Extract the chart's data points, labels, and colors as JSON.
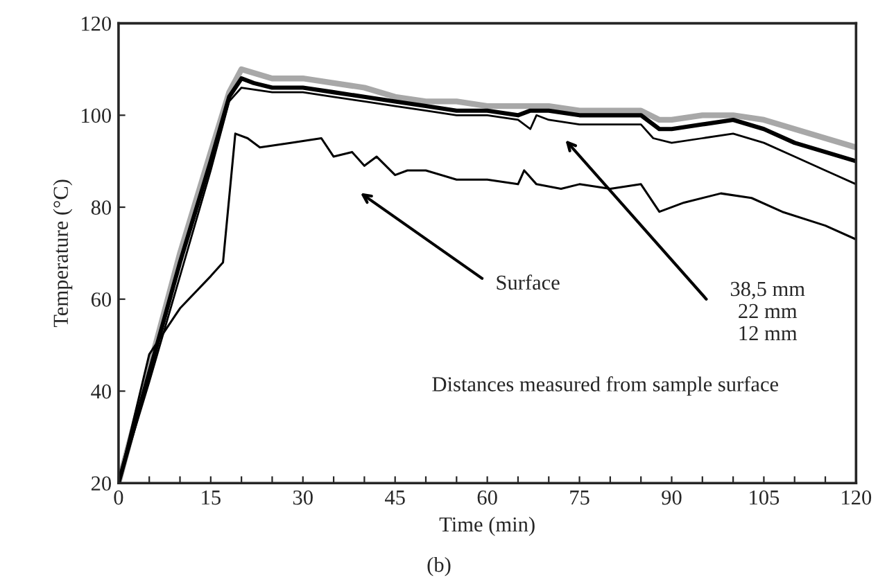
{
  "chart_data": {
    "type": "line",
    "xlabel": "Time (min)",
    "ylabel": "Temperature (°C)",
    "xlim": [
      0,
      120
    ],
    "ylim": [
      20,
      120
    ],
    "xticks": [
      0,
      {
        "value": 5,
        "label": null
      },
      {
        "value": 10,
        "label": null
      },
      15,
      {
        "value": 20,
        "label": null
      },
      {
        "value": 25,
        "label": null
      },
      30,
      {
        "value": 35,
        "label": null
      },
      {
        "value": 40,
        "label": null
      },
      45,
      {
        "value": 50,
        "label": null
      },
      {
        "value": 55,
        "label": null
      },
      60,
      {
        "value": 65,
        "label": null
      },
      {
        "value": 70,
        "label": null
      },
      75,
      {
        "value": 80,
        "label": null
      },
      {
        "value": 85,
        "label": null
      },
      90,
      {
        "value": 95,
        "label": null
      },
      {
        "value": 100,
        "label": null
      },
      105,
      {
        "value": 110,
        "label": null
      },
      {
        "value": 115,
        "label": null
      },
      120
    ],
    "yticks": [
      20,
      40,
      60,
      80,
      100,
      120
    ],
    "grid": false,
    "legend": false,
    "marker": "none",
    "line_style": "solid",
    "x": [
      0,
      5,
      10,
      15,
      17,
      19,
      21,
      23,
      28,
      33,
      35,
      38,
      40,
      42,
      45,
      47,
      50,
      55,
      60,
      65,
      66,
      68,
      72,
      75,
      80,
      85,
      88,
      92,
      98,
      103,
      108,
      115,
      120
    ],
    "series": [
      {
        "color": "#a8a8a8",
        "x": [
          0,
          5,
          10,
          15,
          18,
          20,
          25,
          30,
          35,
          40,
          45,
          50,
          55,
          60,
          65,
          70,
          75,
          80,
          85,
          88,
          90,
          95,
          100,
          105,
          110,
          115,
          120
        ],
        "values": [
          20,
          45,
          70,
          92,
          105,
          110,
          108,
          108,
          107,
          106,
          104,
          103,
          103,
          102,
          102,
          102,
          101,
          101,
          101,
          99,
          99,
          100,
          100,
          99,
          97,
          95,
          93
        ]
      },
      {
        "color": "#000000",
        "x": [
          0,
          5,
          10,
          15,
          18,
          20,
          22,
          25,
          30,
          35,
          40,
          45,
          50,
          55,
          60,
          65,
          67,
          70,
          75,
          80,
          85,
          88,
          90,
          95,
          100,
          105,
          110,
          115,
          120
        ],
        "values": [
          20,
          44,
          68,
          90,
          104,
          108,
          107,
          106,
          106,
          105,
          104,
          103,
          102,
          101,
          101,
          100,
          101,
          101,
          100,
          100,
          100,
          97,
          97,
          98,
          99,
          97,
          94,
          92,
          90
        ]
      },
      {
        "color": "#000000",
        "x": [
          0,
          5,
          10,
          15,
          18,
          20,
          25,
          30,
          35,
          40,
          45,
          50,
          55,
          60,
          65,
          67,
          68,
          70,
          75,
          80,
          85,
          87,
          90,
          95,
          100,
          105,
          110,
          115,
          120
        ],
        "values": [
          20,
          42,
          65,
          88,
          103,
          106,
          105,
          105,
          104,
          103,
          102,
          101,
          100,
          100,
          99,
          97,
          100,
          99,
          98,
          98,
          98,
          95,
          94,
          95,
          96,
          94,
          91,
          88,
          85
        ]
      },
      {
        "color": "#000000",
        "values": [
          20,
          48,
          58,
          65,
          68,
          96,
          95,
          93,
          94,
          95,
          91,
          92,
          89,
          91,
          87,
          88,
          88,
          86,
          86,
          85,
          88,
          85,
          84,
          85,
          84,
          85,
          79,
          81,
          83,
          82,
          79,
          76,
          73
        ]
      }
    ],
    "annotations": [
      "Surface",
      "38,5 mm\n22 mm\n12 mm",
      "Distances measured from sample surface",
      "(b)"
    ]
  }
}
